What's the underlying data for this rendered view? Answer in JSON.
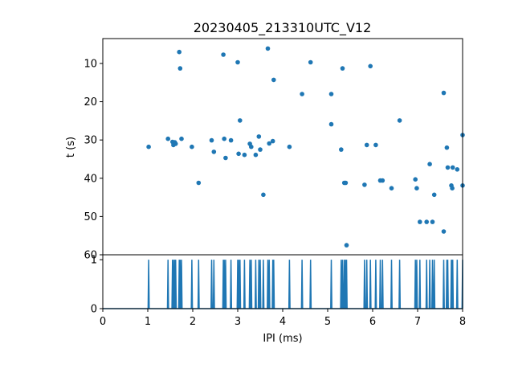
{
  "figure_title": "20230405_213310UTC_V12",
  "colors": {
    "series": "#1f77b4",
    "axes": "#000000",
    "background": "#ffffff"
  },
  "chart_data": [
    {
      "type": "scatter",
      "title": "20230405_213310UTC_V12",
      "xlabel": "",
      "ylabel": "t (s)",
      "xlim": [
        0,
        8
      ],
      "ylim": [
        60,
        3.5
      ],
      "y_inverted": true,
      "yticks": [
        10,
        20,
        30,
        40,
        50,
        60
      ],
      "yticklabels": [
        "10",
        "20",
        "30",
        "40",
        "50",
        "60"
      ],
      "xtick_labels_shown": false,
      "grid": false,
      "points": [
        [
          1.02,
          31.8
        ],
        [
          1.45,
          29.7
        ],
        [
          1.55,
          30.5
        ],
        [
          1.57,
          31.3
        ],
        [
          1.6,
          30.6
        ],
        [
          1.62,
          31.0
        ],
        [
          1.7,
          7.0
        ],
        [
          1.72,
          11.3
        ],
        [
          1.75,
          29.7
        ],
        [
          1.98,
          31.8
        ],
        [
          2.13,
          41.2
        ],
        [
          2.42,
          30.1
        ],
        [
          2.47,
          33.1
        ],
        [
          2.68,
          7.7
        ],
        [
          2.7,
          29.7
        ],
        [
          2.73,
          34.7
        ],
        [
          2.85,
          30.1
        ],
        [
          3.0,
          9.7
        ],
        [
          3.02,
          33.6
        ],
        [
          3.05,
          24.9
        ],
        [
          3.15,
          33.9
        ],
        [
          3.27,
          31.0
        ],
        [
          3.3,
          31.8
        ],
        [
          3.4,
          33.9
        ],
        [
          3.47,
          29.1
        ],
        [
          3.5,
          32.5
        ],
        [
          3.57,
          44.3
        ],
        [
          3.67,
          6.1
        ],
        [
          3.7,
          30.9
        ],
        [
          3.8,
          14.3
        ],
        [
          3.78,
          30.3
        ],
        [
          4.15,
          31.8
        ],
        [
          4.43,
          18.0
        ],
        [
          4.62,
          9.7
        ],
        [
          5.08,
          18.0
        ],
        [
          5.08,
          25.9
        ],
        [
          5.3,
          32.5
        ],
        [
          5.33,
          11.3
        ],
        [
          5.37,
          41.2
        ],
        [
          5.4,
          41.2
        ],
        [
          5.42,
          57.5
        ],
        [
          5.82,
          41.7
        ],
        [
          5.87,
          31.3
        ],
        [
          5.95,
          10.7
        ],
        [
          6.07,
          31.3
        ],
        [
          6.17,
          40.6
        ],
        [
          6.22,
          40.6
        ],
        [
          6.42,
          42.6
        ],
        [
          6.6,
          24.9
        ],
        [
          6.95,
          40.3
        ],
        [
          6.98,
          42.6
        ],
        [
          7.05,
          51.4
        ],
        [
          7.2,
          51.4
        ],
        [
          7.27,
          36.3
        ],
        [
          7.33,
          51.4
        ],
        [
          7.37,
          44.3
        ],
        [
          7.58,
          17.7
        ],
        [
          7.58,
          53.9
        ],
        [
          7.65,
          32.0
        ],
        [
          7.67,
          37.2
        ],
        [
          7.75,
          41.9
        ],
        [
          7.77,
          42.6
        ],
        [
          7.78,
          37.2
        ],
        [
          7.88,
          37.7
        ],
        [
          8.0,
          28.7
        ],
        [
          8.0,
          41.9
        ]
      ]
    },
    {
      "type": "line",
      "title": "",
      "xlabel": "IPI (ms)",
      "ylabel": "",
      "xlim": [
        0,
        8
      ],
      "ylim": [
        0,
        1.1
      ],
      "xticks": [
        0,
        1,
        2,
        3,
        4,
        5,
        6,
        7,
        8
      ],
      "xticklabels": [
        "0",
        "1",
        "2",
        "3",
        "4",
        "5",
        "6",
        "7",
        "8"
      ],
      "yticks": [
        0,
        1
      ],
      "yticklabels": [
        "0",
        "1"
      ],
      "grid": false,
      "spike_x": [
        1.02,
        1.45,
        1.55,
        1.57,
        1.6,
        1.62,
        1.7,
        1.72,
        1.75,
        1.98,
        2.13,
        2.42,
        2.47,
        2.68,
        2.7,
        2.73,
        2.85,
        3.0,
        3.02,
        3.05,
        3.15,
        3.27,
        3.3,
        3.4,
        3.47,
        3.5,
        3.57,
        3.67,
        3.7,
        3.78,
        3.8,
        4.15,
        4.43,
        4.62,
        5.08,
        5.3,
        5.33,
        5.37,
        5.4,
        5.42,
        5.82,
        5.87,
        5.95,
        6.07,
        6.17,
        6.22,
        6.42,
        6.6,
        6.95,
        6.98,
        7.05,
        7.2,
        7.27,
        7.33,
        7.37,
        7.58,
        7.65,
        7.67,
        7.75,
        7.77,
        7.78,
        7.88,
        8.0
      ],
      "spike_value": 1
    }
  ]
}
